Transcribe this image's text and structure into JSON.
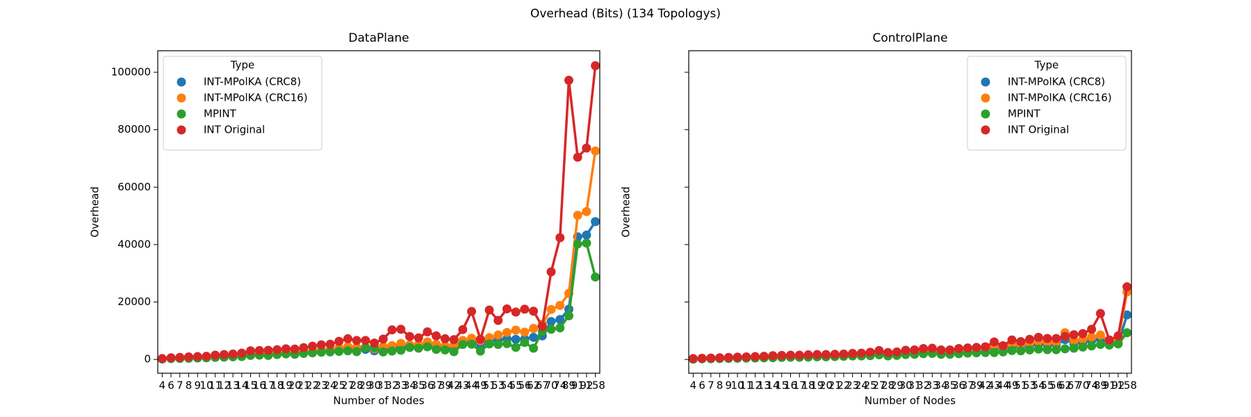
{
  "title": "Overhead (Bits) (134 Topologys)",
  "chart_data": [
    {
      "type": "point",
      "title": "DataPlane",
      "xlabel": "Number of Nodes",
      "ylabel": "Overhead",
      "categories": [
        "4",
        "6",
        "7",
        "8",
        "9",
        "10",
        "11",
        "12",
        "13",
        "14",
        "15",
        "16",
        "17",
        "18",
        "19",
        "20",
        "21",
        "22",
        "23",
        "24",
        "25",
        "27",
        "28",
        "29",
        "30",
        "31",
        "32",
        "33",
        "34",
        "35",
        "36",
        "37",
        "39",
        "42",
        "43",
        "44",
        "49",
        "51",
        "53",
        "54",
        "55",
        "56",
        "62",
        "67",
        "70",
        "74",
        "89",
        "91",
        "92",
        "158"
      ],
      "ylim": [
        -4800,
        107500
      ],
      "yticks": [
        0,
        20000,
        40000,
        60000,
        80000,
        100000
      ],
      "show_ytick_labels": true,
      "legend_title": "Type",
      "legend": "upper left",
      "series": [
        {
          "name": "INT-MPolKA (CRC8)",
          "color": "#1f77b4",
          "values": [
            200,
            350,
            400,
            500,
            600,
            700,
            800,
            900,
            1100,
            1200,
            1600,
            1700,
            1700,
            1900,
            2100,
            2100,
            2300,
            2600,
            2800,
            3000,
            3300,
            3700,
            3500,
            3500,
            3000,
            3500,
            3700,
            4400,
            4200,
            4300,
            4800,
            4200,
            3800,
            4100,
            5400,
            6000,
            5300,
            6200,
            6800,
            7200,
            7000,
            7100,
            7700,
            8200,
            13200,
            13900,
            17500,
            42700,
            43300,
            48000
          ]
        },
        {
          "name": "INT-MPolKA (CRC16)",
          "color": "#ff7f0e",
          "values": [
            200,
            400,
            500,
            600,
            700,
            800,
            1000,
            1100,
            1300,
            1500,
            1900,
            2000,
            2100,
            2200,
            2400,
            2400,
            2700,
            3000,
            3300,
            3500,
            4000,
            4500,
            4200,
            4200,
            3700,
            4500,
            4800,
            5600,
            5100,
            5200,
            6100,
            5300,
            4700,
            5000,
            6600,
            7400,
            6500,
            7600,
            8500,
            9400,
            10200,
            9500,
            10800,
            12300,
            17400,
            18800,
            23000,
            50200,
            51500,
            72600
          ]
        },
        {
          "name": "MPINT",
          "color": "#2ca02c",
          "values": [
            150,
            300,
            350,
            400,
            500,
            550,
            700,
            800,
            900,
            1000,
            1400,
            1500,
            1400,
            1700,
            1900,
            1800,
            2100,
            2300,
            2500,
            2600,
            2800,
            3000,
            2700,
            4200,
            4100,
            2600,
            2900,
            3200,
            4200,
            3900,
            4400,
            3500,
            3300,
            2700,
            5200,
            5300,
            2900,
            5400,
            5200,
            5500,
            4200,
            5900,
            3900,
            9800,
            10500,
            11000,
            15200,
            40200,
            40500,
            28700
          ]
        },
        {
          "name": "INT Original",
          "color": "#d62728",
          "values": [
            300,
            600,
            700,
            900,
            1000,
            1100,
            1500,
            1700,
            1900,
            2200,
            3000,
            3100,
            3200,
            3400,
            3700,
            3600,
            4100,
            4600,
            5100,
            5300,
            6300,
            7200,
            6600,
            6600,
            5700,
            7100,
            10300,
            10500,
            8000,
            7500,
            9600,
            8200,
            7200,
            6900,
            10400,
            16700,
            7000,
            17200,
            13600,
            17600,
            16500,
            17500,
            16800,
            11500,
            30500,
            42400,
            97200,
            70400,
            73600,
            102300
          ]
        }
      ]
    },
    {
      "type": "point",
      "title": "ControlPlane",
      "xlabel": "Number of Nodes",
      "ylabel": "Overhead",
      "categories": [
        "4",
        "6",
        "7",
        "8",
        "9",
        "10",
        "11",
        "12",
        "13",
        "14",
        "15",
        "16",
        "17",
        "18",
        "19",
        "20",
        "21",
        "22",
        "23",
        "24",
        "25",
        "27",
        "28",
        "29",
        "30",
        "31",
        "32",
        "33",
        "34",
        "35",
        "36",
        "37",
        "39",
        "42",
        "43",
        "44",
        "49",
        "51",
        "53",
        "54",
        "55",
        "56",
        "62",
        "67",
        "70",
        "74",
        "89",
        "91",
        "92",
        "158"
      ],
      "ylim": [
        -4800,
        107500
      ],
      "yticks": [
        0,
        20000,
        40000,
        60000,
        80000,
        100000
      ],
      "show_ytick_labels": false,
      "legend_title": "Type",
      "legend": "upper right",
      "series": [
        {
          "name": "INT-MPolKA (CRC8)",
          "color": "#1f77b4",
          "values": [
            200,
            300,
            350,
            400,
            500,
            550,
            600,
            650,
            700,
            800,
            900,
            1000,
            1000,
            1100,
            1200,
            1200,
            1300,
            1400,
            1500,
            1600,
            1700,
            2100,
            1600,
            1800,
            2200,
            2300,
            2600,
            2700,
            2300,
            2300,
            2600,
            2800,
            2900,
            3100,
            4200,
            3300,
            4600,
            4200,
            4800,
            5300,
            5000,
            5000,
            6900,
            5500,
            5900,
            6500,
            7000,
            5300,
            5600,
            15500
          ]
        },
        {
          "name": "INT-MPolKA (CRC16)",
          "color": "#ff7f0e",
          "values": [
            250,
            350,
            400,
            500,
            600,
            650,
            750,
            800,
            900,
            1000,
            1100,
            1200,
            1200,
            1300,
            1400,
            1400,
            1500,
            1600,
            1700,
            1800,
            2000,
            2500,
            1900,
            2100,
            2600,
            2700,
            3100,
            3200,
            2700,
            2700,
            3100,
            3300,
            3400,
            3600,
            5000,
            3900,
            5500,
            5000,
            5700,
            6300,
            6000,
            6000,
            9300,
            6500,
            7000,
            7800,
            8500,
            6300,
            6600,
            23500
          ]
        },
        {
          "name": "MPINT",
          "color": "#2ca02c",
          "values": [
            100,
            200,
            250,
            300,
            350,
            400,
            450,
            500,
            550,
            600,
            700,
            750,
            750,
            800,
            900,
            900,
            1000,
            1100,
            1200,
            1200,
            1300,
            1600,
            1200,
            1400,
            1700,
            1800,
            2000,
            2100,
            1800,
            1800,
            2000,
            2200,
            2300,
            2400,
            2400,
            2600,
            3100,
            3000,
            3300,
            3600,
            3400,
            3400,
            3700,
            3900,
            4300,
            4700,
            5200,
            5000,
            5400,
            9300
          ]
        },
        {
          "name": "INT Original",
          "color": "#d62728",
          "values": [
            300,
            400,
            500,
            600,
            700,
            800,
            900,
            1000,
            1100,
            1300,
            1400,
            1500,
            1500,
            1600,
            1700,
            1700,
            1800,
            1900,
            2100,
            2200,
            2500,
            3100,
            2400,
            2600,
            3200,
            3300,
            3800,
            3900,
            3300,
            3300,
            3800,
            4000,
            4200,
            4400,
            6100,
            4800,
            6800,
            6200,
            7000,
            7700,
            7300,
            7300,
            8000,
            8600,
            9000,
            10500,
            16000,
            6800,
            8200,
            25300
          ]
        }
      ]
    }
  ]
}
